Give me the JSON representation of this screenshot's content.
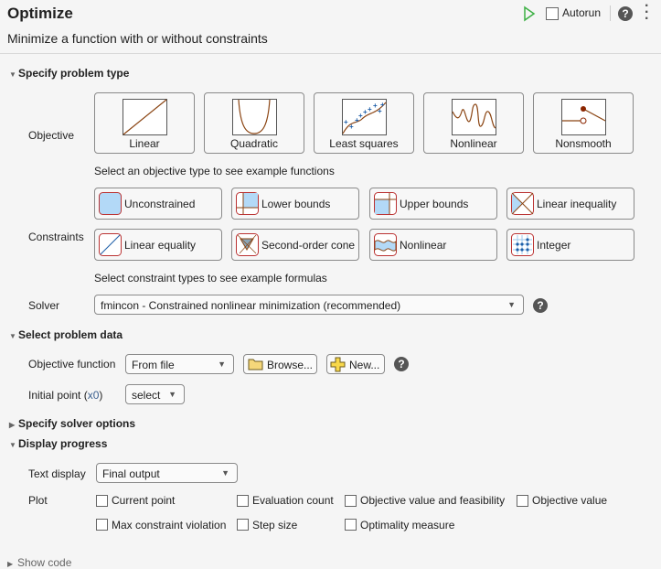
{
  "header": {
    "title": "Optimize",
    "subtitle": "Minimize a function with or without constraints",
    "autorun_label": "Autorun",
    "autorun_checked": false,
    "icons": [
      "run-icon",
      "help-icon",
      "more-options-icon"
    ],
    "accent_green": "#3cb043"
  },
  "problem_type": {
    "section_title": "Specify problem type",
    "objective_label": "Objective",
    "objectives": [
      {
        "label": "Linear",
        "icon": "linear-icon"
      },
      {
        "label": "Quadratic",
        "icon": "quadratic-icon"
      },
      {
        "label": "Least squares",
        "icon": "least-squares-icon"
      },
      {
        "label": "Nonlinear",
        "icon": "nonlinear-icon"
      },
      {
        "label": "Nonsmooth",
        "icon": "nonsmooth-icon"
      }
    ],
    "objective_hint": "Select an objective type to see example functions",
    "constraints_label": "Constraints",
    "constraints": [
      {
        "label": "Unconstrained",
        "icon": "unconstrained-icon"
      },
      {
        "label": "Lower bounds",
        "icon": "lower-bounds-icon"
      },
      {
        "label": "Upper bounds",
        "icon": "upper-bounds-icon"
      },
      {
        "label": "Linear inequality",
        "icon": "linear-inequality-icon"
      },
      {
        "label": "Linear equality",
        "icon": "linear-equality-icon"
      },
      {
        "label": "Second-order cone",
        "icon": "second-order-cone-icon"
      },
      {
        "label": "Nonlinear",
        "icon": "nonlinear-constraint-icon"
      },
      {
        "label": "Integer",
        "icon": "integer-icon"
      }
    ],
    "constraint_hint": "Select constraint types to see example formulas",
    "solver_label": "Solver",
    "solver_value": "fmincon - Constrained nonlinear minimization (recommended)"
  },
  "problem_data": {
    "section_title": "Select problem data",
    "objective_function_label": "Objective function",
    "objective_function_value": "From file",
    "browse_label": "Browse...",
    "new_label": "New...",
    "initial_point_label": "Initial point (",
    "initial_point_var": "x0",
    "initial_point_close": ")",
    "initial_point_value": "select"
  },
  "solver_options": {
    "section_title": "Specify solver options",
    "expanded": false
  },
  "display_progress": {
    "section_title": "Display progress",
    "text_display_label": "Text display",
    "text_display_value": "Final output",
    "plot_label": "Plot",
    "plots": [
      {
        "label": "Current point",
        "checked": false
      },
      {
        "label": "Evaluation count",
        "checked": false
      },
      {
        "label": "Objective value and feasibility",
        "checked": false
      },
      {
        "label": "Objective value",
        "checked": false
      },
      {
        "label": "Max constraint violation",
        "checked": false
      },
      {
        "label": "Step size",
        "checked": false
      },
      {
        "label": "Optimality measure",
        "checked": false
      }
    ]
  },
  "show_code": {
    "label": "Show code",
    "expanded": false
  }
}
